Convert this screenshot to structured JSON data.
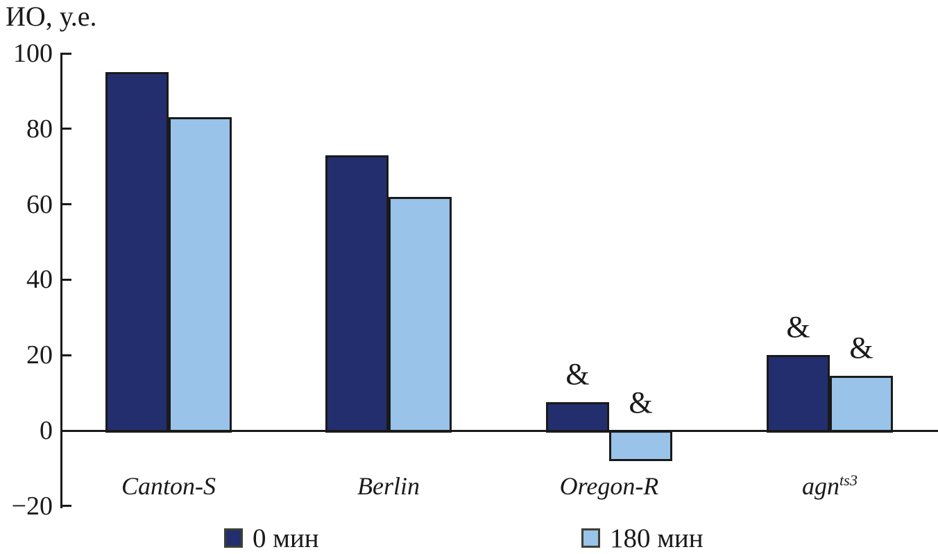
{
  "title": "ИО, у.е.",
  "chart_data": {
    "type": "bar",
    "title": "",
    "ylabel": "ИО, у.е.",
    "xlabel": "",
    "ylim": [
      -20,
      100
    ],
    "grid": false,
    "legend_position": "bottom",
    "yticks": [
      {
        "value": 100,
        "label": "100"
      },
      {
        "value": 80,
        "label": "80"
      },
      {
        "value": 60,
        "label": "60"
      },
      {
        "value": 40,
        "label": "40"
      },
      {
        "value": 20,
        "label": "20"
      },
      {
        "value": 0,
        "label": "0"
      },
      {
        "value": -20,
        "label": "−20"
      }
    ],
    "categories": [
      {
        "label": "Canton-S",
        "sup": ""
      },
      {
        "label": "Berlin",
        "sup": ""
      },
      {
        "label": "Oregon-R",
        "sup": ""
      },
      {
        "label": "agn",
        "sup": "ts3"
      }
    ],
    "series": [
      {
        "name": "0 мин",
        "color": "#232e6e",
        "values": [
          95,
          73,
          7.5,
          20
        ],
        "annotations": [
          "",
          "",
          "&",
          "&"
        ]
      },
      {
        "name": "180 мин",
        "color": "#99c3e8",
        "values": [
          83,
          62,
          -7.5,
          14.5
        ],
        "annotations": [
          "",
          "",
          "&",
          "&"
        ]
      }
    ]
  }
}
